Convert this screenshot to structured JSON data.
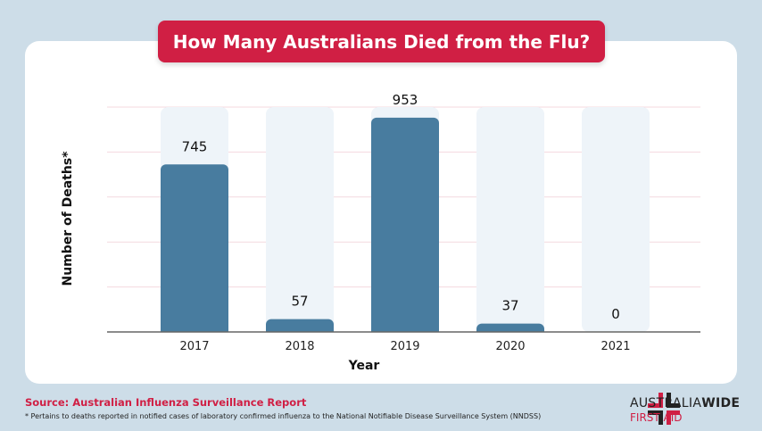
{
  "chart_data": {
    "type": "bar",
    "title": "How Many Australians Died from the Flu?",
    "xlabel": "Year",
    "ylabel": "Number of Deaths*",
    "categories": [
      "2017",
      "2018",
      "2019",
      "2020",
      "2021"
    ],
    "values": [
      745,
      57,
      953,
      37,
      0
    ],
    "ylim": [
      0,
      1000
    ],
    "grid": true,
    "colors": {
      "bar": "#487c9f",
      "track": "#eef4f9",
      "grid": "#f4d9df",
      "title_bg": "#d01f44"
    }
  },
  "footer": {
    "source": "Source: Australian Influenza Surveillance Report",
    "note": "* Pertains to deaths reported in notified cases of laboratory confirmed influenza to the National Notifiable Disease Surveillance System (NNDSS)"
  },
  "logo": {
    "line1a": "AUSTRALIA",
    "line1b": "WIDE",
    "line2": "FIRST AID"
  }
}
